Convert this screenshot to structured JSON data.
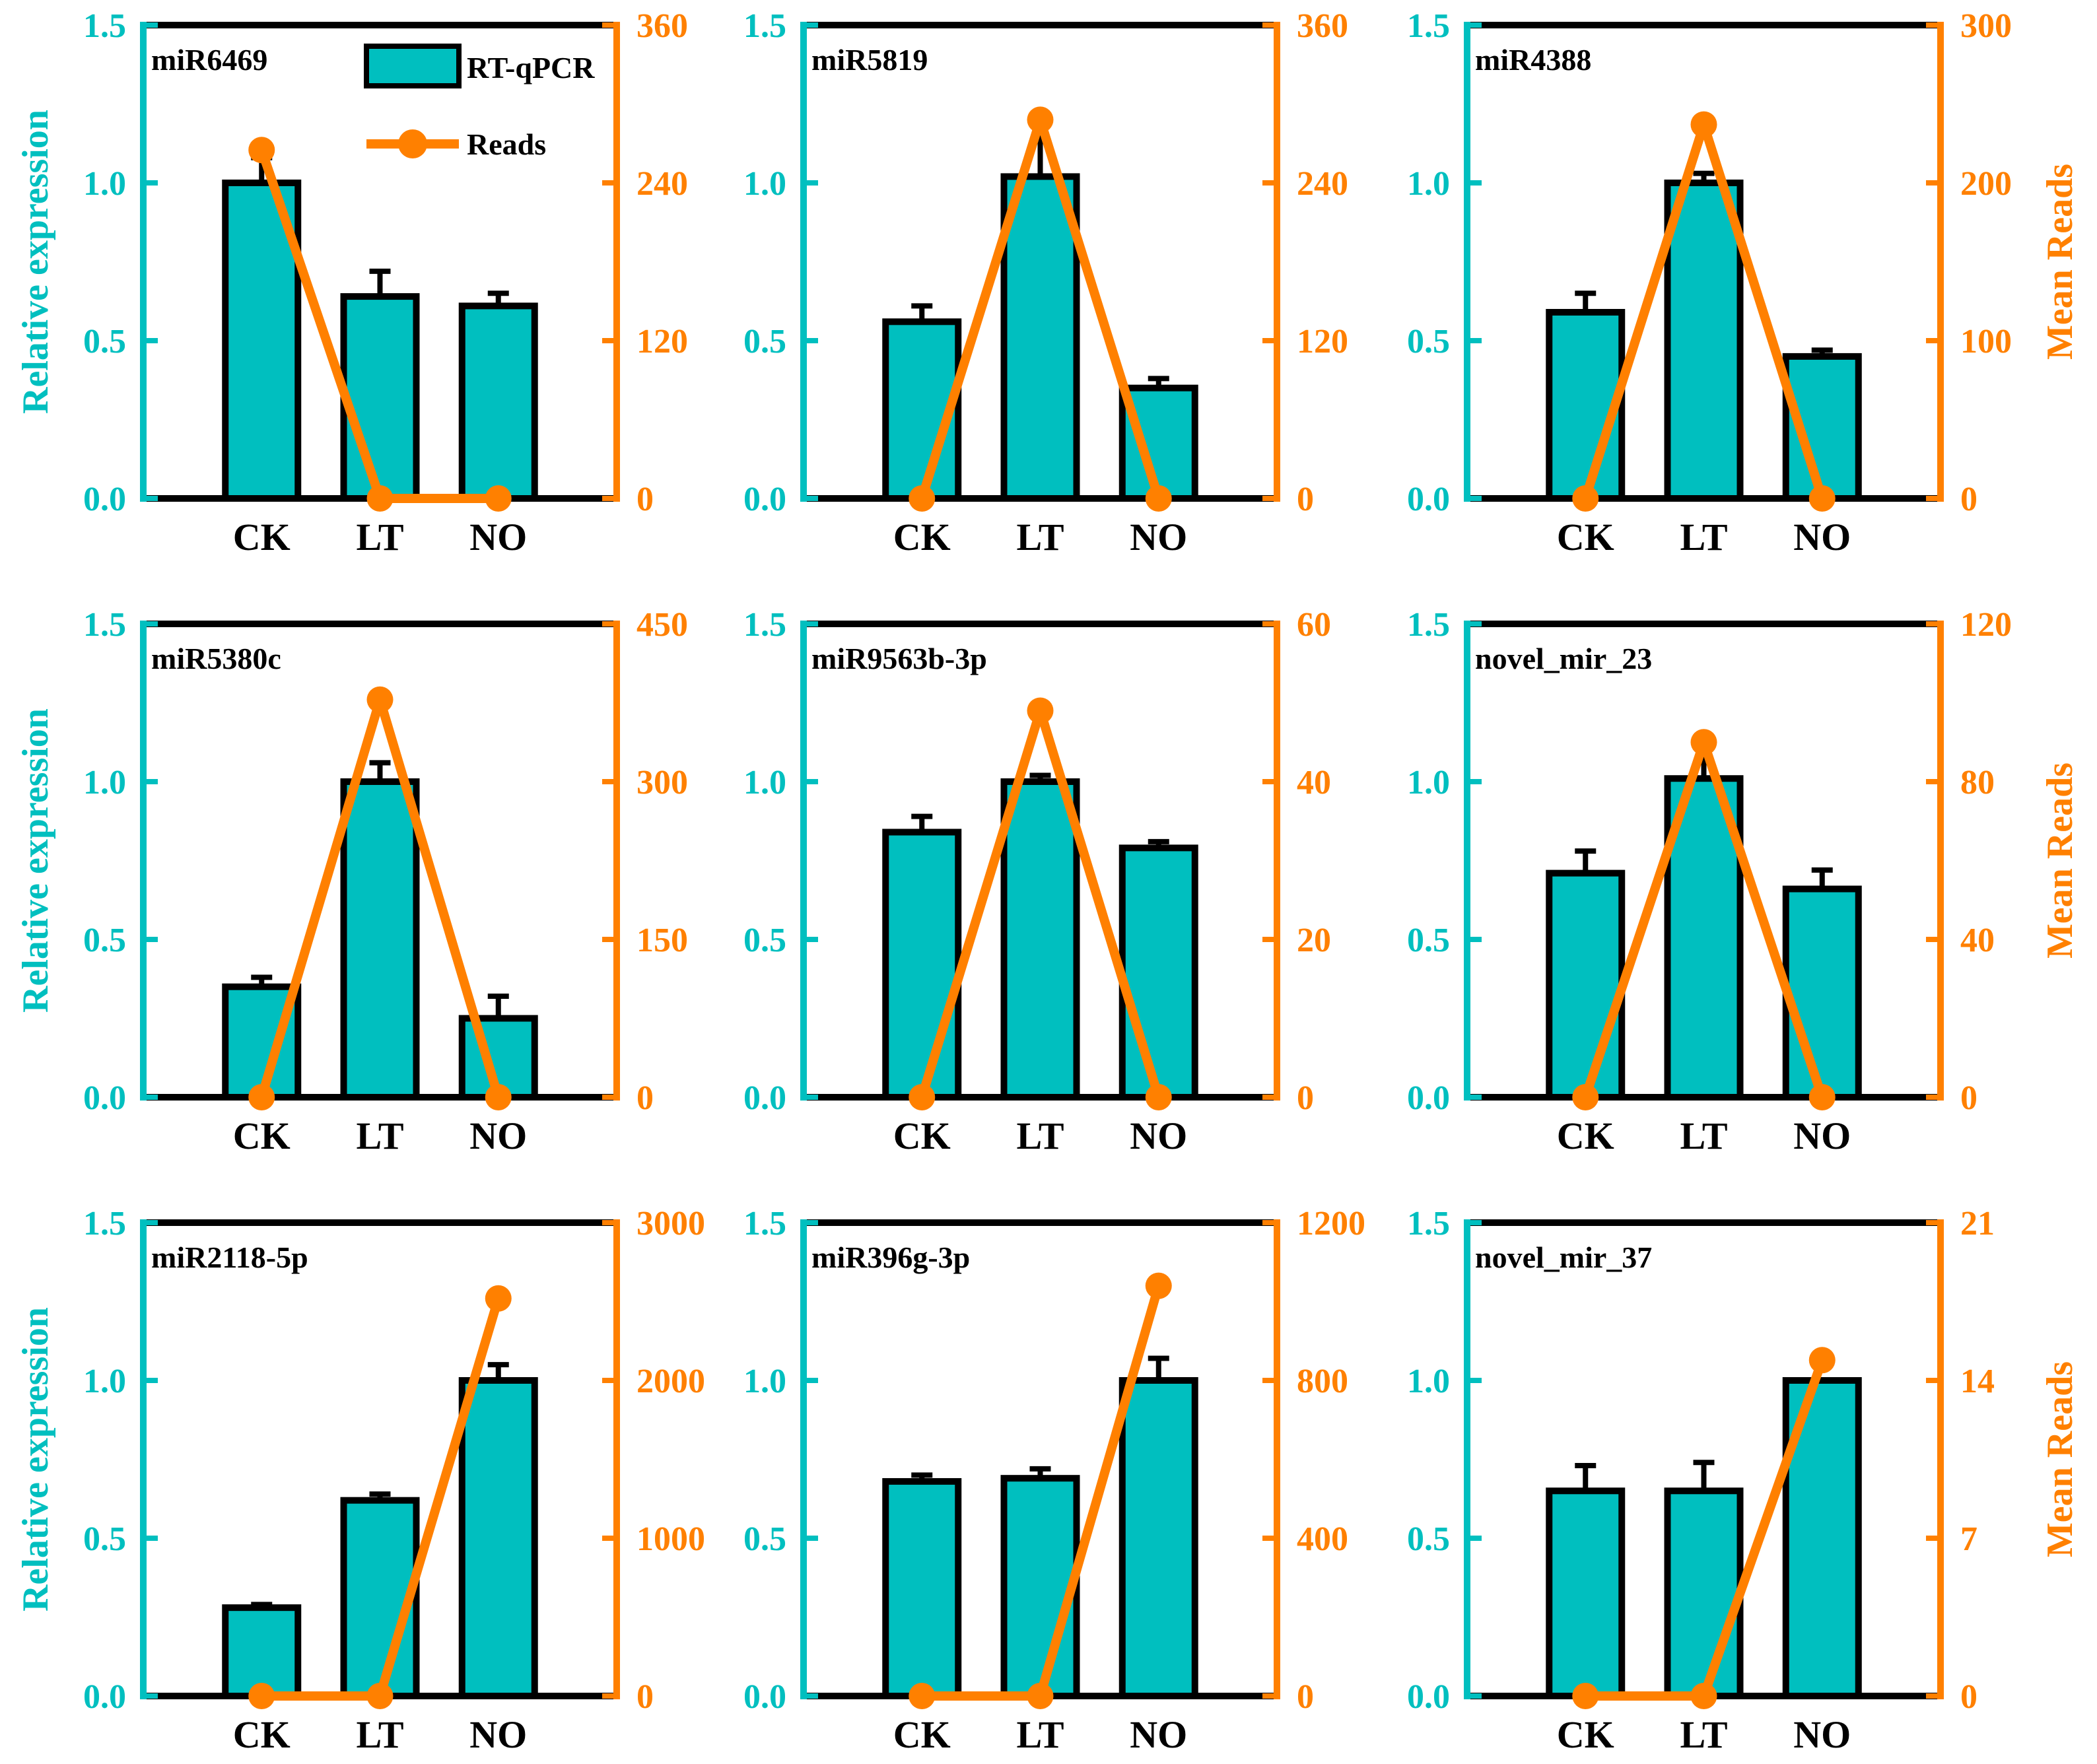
{
  "colors": {
    "bar": "#00BFBF",
    "line": "#FF8000",
    "frame": "#000000"
  },
  "legend": {
    "bar_label": "RT-qPCR",
    "line_label": "Reads"
  },
  "axis_labels": {
    "left": "Relative expression",
    "right": "Mean Reads"
  },
  "chart_data": [
    {
      "type": "bar+line",
      "title": "miR6469",
      "categories": [
        "CK",
        "LT",
        "NO"
      ],
      "bar_values": [
        1.0,
        0.64,
        0.61
      ],
      "bar_errors": [
        0.08,
        0.08,
        0.04
      ],
      "line_values": [
        265,
        0,
        0
      ],
      "ylim_left": [
        0,
        1.5
      ],
      "yticks_left": [
        "0.0",
        "0.5",
        "1.0",
        "1.5"
      ],
      "ylim_right": [
        0,
        360
      ],
      "yticks_right": [
        "0",
        "120",
        "240",
        "360"
      ],
      "show_left_label": true,
      "show_right_label": false,
      "show_legend": true
    },
    {
      "type": "bar+line",
      "title": "miR5819",
      "categories": [
        "CK",
        "LT",
        "NO"
      ],
      "bar_values": [
        0.56,
        1.02,
        0.35
      ],
      "bar_errors": [
        0.05,
        0.19,
        0.03
      ],
      "line_values": [
        0,
        288,
        0
      ],
      "ylim_left": [
        0,
        1.5
      ],
      "yticks_left": [
        "0.0",
        "0.5",
        "1.0",
        "1.5"
      ],
      "ylim_right": [
        0,
        360
      ],
      "yticks_right": [
        "0",
        "120",
        "240",
        "360"
      ],
      "show_left_label": false,
      "show_right_label": false,
      "show_legend": false
    },
    {
      "type": "bar+line",
      "title": "miR4388",
      "categories": [
        "CK",
        "LT",
        "NO"
      ],
      "bar_values": [
        0.59,
        1.0,
        0.45
      ],
      "bar_errors": [
        0.06,
        0.03,
        0.02
      ],
      "line_values": [
        0,
        237,
        0
      ],
      "ylim_left": [
        0,
        1.5
      ],
      "yticks_left": [
        "0.0",
        "0.5",
        "1.0",
        "1.5"
      ],
      "ylim_right": [
        0,
        300
      ],
      "yticks_right": [
        "0",
        "100",
        "200",
        "300"
      ],
      "show_left_label": false,
      "show_right_label": true,
      "show_legend": false
    },
    {
      "type": "bar+line",
      "title": "miR5380c",
      "categories": [
        "CK",
        "LT",
        "NO"
      ],
      "bar_values": [
        0.35,
        1.0,
        0.25
      ],
      "bar_errors": [
        0.03,
        0.06,
        0.07
      ],
      "line_values": [
        0,
        378,
        0
      ],
      "ylim_left": [
        0,
        1.5
      ],
      "yticks_left": [
        "0.0",
        "0.5",
        "1.0",
        "1.5"
      ],
      "ylim_right": [
        0,
        450
      ],
      "yticks_right": [
        "0",
        "150",
        "300",
        "450"
      ],
      "show_left_label": true,
      "show_right_label": false,
      "show_legend": false
    },
    {
      "type": "bar+line",
      "title": "miR9563b-3p",
      "categories": [
        "CK",
        "LT",
        "NO"
      ],
      "bar_values": [
        0.84,
        1.0,
        0.79
      ],
      "bar_errors": [
        0.05,
        0.02,
        0.02
      ],
      "line_values": [
        0,
        49,
        0
      ],
      "ylim_left": [
        0,
        1.5
      ],
      "yticks_left": [
        "0.0",
        "0.5",
        "1.0",
        "1.5"
      ],
      "ylim_right": [
        0,
        60
      ],
      "yticks_right": [
        "0",
        "20",
        "40",
        "60"
      ],
      "show_left_label": false,
      "show_right_label": false,
      "show_legend": false
    },
    {
      "type": "bar+line",
      "title": "novel_mir_23",
      "categories": [
        "CK",
        "LT",
        "NO"
      ],
      "bar_values": [
        0.71,
        1.01,
        0.66
      ],
      "bar_errors": [
        0.07,
        0.1,
        0.06
      ],
      "line_values": [
        0,
        90,
        0
      ],
      "ylim_left": [
        0,
        1.5
      ],
      "yticks_left": [
        "0.0",
        "0.5",
        "1.0",
        "1.5"
      ],
      "ylim_right": [
        0,
        120
      ],
      "yticks_right": [
        "0",
        "40",
        "80",
        "120"
      ],
      "show_left_label": false,
      "show_right_label": true,
      "show_legend": false
    },
    {
      "type": "bar+line",
      "title": "miR2118-5p",
      "categories": [
        "CK",
        "LT",
        "NO"
      ],
      "bar_values": [
        0.28,
        0.62,
        1.0
      ],
      "bar_errors": [
        0.01,
        0.02,
        0.05
      ],
      "line_values": [
        0,
        0,
        2520
      ],
      "ylim_left": [
        0,
        1.5
      ],
      "yticks_left": [
        "0.0",
        "0.5",
        "1.0",
        "1.5"
      ],
      "ylim_right": [
        0,
        3000
      ],
      "yticks_right": [
        "0",
        "1000",
        "2000",
        "3000"
      ],
      "show_left_label": true,
      "show_right_label": false,
      "show_legend": false
    },
    {
      "type": "bar+line",
      "title": "miR396g-3p",
      "categories": [
        "CK",
        "LT",
        "NO"
      ],
      "bar_values": [
        0.68,
        0.69,
        1.0
      ],
      "bar_errors": [
        0.02,
        0.03,
        0.07
      ],
      "line_values": [
        0,
        0,
        1040
      ],
      "ylim_left": [
        0,
        1.5
      ],
      "yticks_left": [
        "0.0",
        "0.5",
        "1.0",
        "1.5"
      ],
      "ylim_right": [
        0,
        1200
      ],
      "yticks_right": [
        "0",
        "400",
        "800",
        "1200"
      ],
      "show_left_label": false,
      "show_right_label": false,
      "show_legend": false
    },
    {
      "type": "bar+line",
      "title": "novel_mir_37",
      "categories": [
        "CK",
        "LT",
        "NO"
      ],
      "bar_values": [
        0.65,
        0.65,
        1.0
      ],
      "bar_errors": [
        0.08,
        0.09,
        0.0
      ],
      "line_values": [
        0,
        0,
        14.9
      ],
      "ylim_left": [
        0,
        1.5
      ],
      "yticks_left": [
        "0.0",
        "0.5",
        "1.0",
        "1.5"
      ],
      "ylim_right": [
        0,
        21
      ],
      "yticks_right": [
        "0",
        "7",
        "14",
        "21"
      ],
      "show_left_label": false,
      "show_right_label": true,
      "show_legend": false
    }
  ]
}
